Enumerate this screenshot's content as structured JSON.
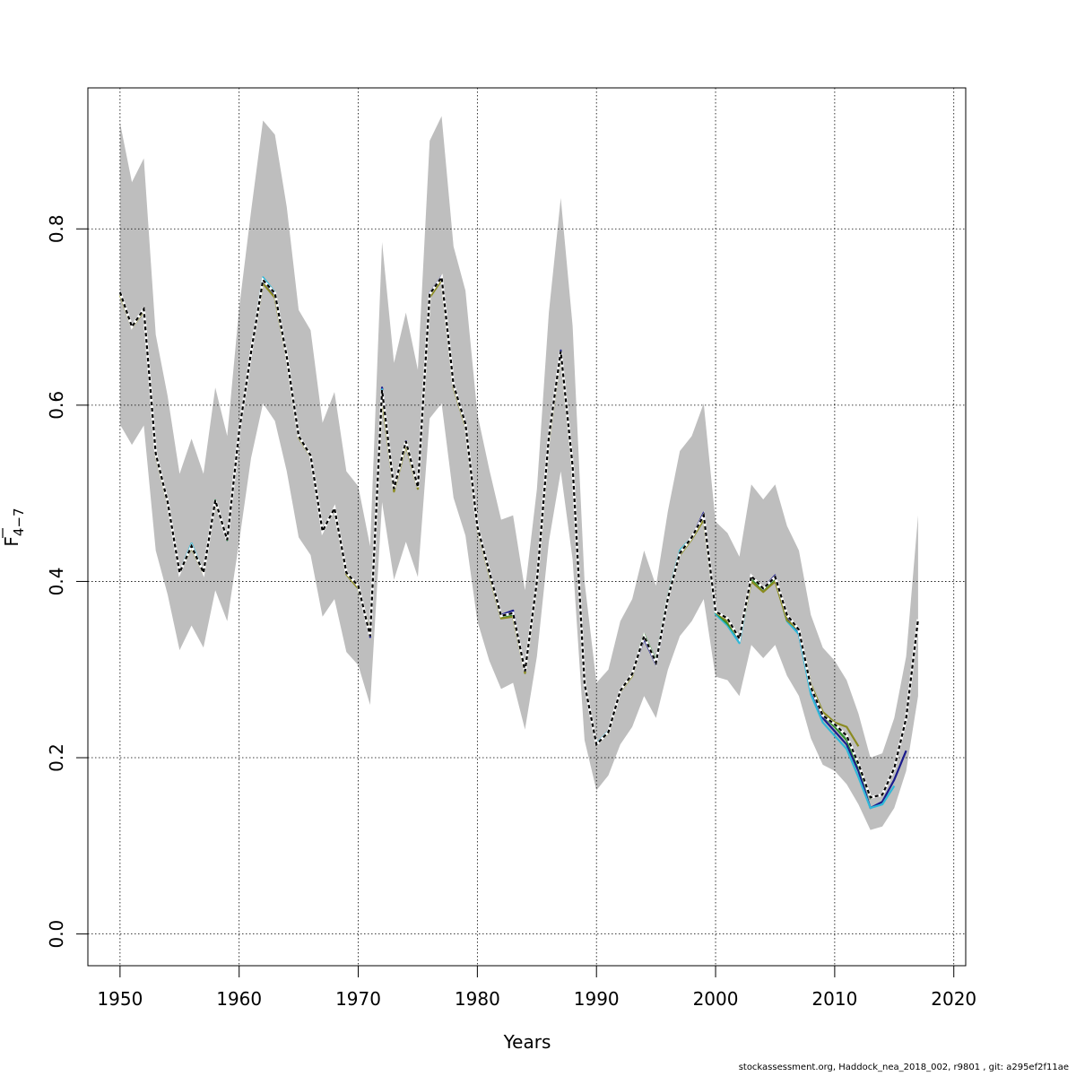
{
  "chart_data": {
    "type": "line",
    "title": "",
    "xlabel": "Years",
    "ylabel": "F̄ 4−7",
    "ylabel_main": "F",
    "ylabel_sub": "4−7",
    "xlim": [
      1947.3,
      2021
    ],
    "ylim": [
      -0.036,
      0.96
    ],
    "xticks": [
      1950,
      1960,
      1970,
      1980,
      1990,
      2000,
      2010,
      2020
    ],
    "yticks": [
      0.0,
      0.2,
      0.4,
      0.6,
      0.8
    ],
    "ytick_labels": [
      "0.0",
      "0.2",
      "0.4",
      "0.6",
      "0.8"
    ],
    "xtick_labels": [
      "1950",
      "1960",
      "1970",
      "1980",
      "1990",
      "2000",
      "2010",
      "2020"
    ],
    "grid": true,
    "confidence_band": {
      "color": "#bebebe",
      "x": [
        1950,
        1951,
        1952,
        1953,
        1954,
        1955,
        1956,
        1957,
        1958,
        1959,
        1960,
        1961,
        1962,
        1963,
        1964,
        1965,
        1966,
        1967,
        1968,
        1969,
        1970,
        1971,
        1972,
        1973,
        1974,
        1975,
        1976,
        1977,
        1978,
        1979,
        1980,
        1981,
        1982,
        1983,
        1984,
        1985,
        1986,
        1987,
        1988,
        1989,
        1990,
        1991,
        1992,
        1993,
        1994,
        1995,
        1996,
        1997,
        1998,
        1999,
        2000,
        2001,
        2002,
        2003,
        2004,
        2005,
        2006,
        2007,
        2008,
        2009,
        2010,
        2011,
        2012,
        2013,
        2014,
        2015,
        2016,
        2017
      ],
      "upper": [
        0.92,
        0.853,
        0.88,
        0.68,
        0.61,
        0.522,
        0.562,
        0.522,
        0.62,
        0.565,
        0.71,
        0.82,
        0.923,
        0.907,
        0.825,
        0.708,
        0.685,
        0.58,
        0.615,
        0.525,
        0.508,
        0.44,
        0.785,
        0.648,
        0.705,
        0.64,
        0.9,
        0.928,
        0.78,
        0.73,
        0.59,
        0.527,
        0.47,
        0.475,
        0.39,
        0.505,
        0.705,
        0.835,
        0.69,
        0.4,
        0.285,
        0.3,
        0.355,
        0.38,
        0.435,
        0.395,
        0.48,
        0.548,
        0.565,
        0.602,
        0.468,
        0.455,
        0.428,
        0.51,
        0.493,
        0.51,
        0.463,
        0.435,
        0.362,
        0.325,
        0.31,
        0.288,
        0.25,
        0.2,
        0.205,
        0.245,
        0.315,
        0.475
      ],
      "lower": [
        0.578,
        0.555,
        0.577,
        0.435,
        0.385,
        0.322,
        0.35,
        0.325,
        0.39,
        0.355,
        0.445,
        0.54,
        0.602,
        0.582,
        0.525,
        0.45,
        0.43,
        0.36,
        0.38,
        0.32,
        0.305,
        0.26,
        0.49,
        0.402,
        0.445,
        0.405,
        0.585,
        0.602,
        0.495,
        0.452,
        0.355,
        0.31,
        0.278,
        0.285,
        0.232,
        0.315,
        0.445,
        0.525,
        0.425,
        0.22,
        0.163,
        0.18,
        0.215,
        0.235,
        0.27,
        0.245,
        0.3,
        0.338,
        0.355,
        0.38,
        0.292,
        0.288,
        0.27,
        0.328,
        0.313,
        0.328,
        0.293,
        0.27,
        0.222,
        0.192,
        0.185,
        0.17,
        0.147,
        0.118,
        0.122,
        0.143,
        0.185,
        0.27
      ]
    },
    "series": [
      {
        "color": "#1a1a8c",
        "x": [
          1950,
          1951,
          1952,
          1953,
          1954,
          1955,
          1956,
          1957,
          1958,
          1959,
          1960,
          1961,
          1962,
          1963,
          1964,
          1965,
          1966,
          1967,
          1968,
          1969,
          1970,
          1971,
          1972,
          1973,
          1974,
          1975,
          1976,
          1977,
          1978,
          1979,
          1980,
          1981,
          1982,
          1983,
          1984,
          1985,
          1986,
          1987,
          1988,
          1989,
          1990,
          1991,
          1992,
          1993,
          1994,
          1995,
          1996,
          1997,
          1998,
          1999,
          2000,
          2001,
          2002,
          2003,
          2004,
          2005,
          2006,
          2007,
          2008,
          2009,
          2010,
          2011,
          2012,
          2013,
          2014,
          2015,
          2016
        ],
        "y": [
          0.728,
          0.689,
          0.709,
          0.545,
          0.49,
          0.41,
          0.441,
          0.41,
          0.492,
          0.447,
          0.57,
          0.66,
          0.74,
          0.725,
          0.655,
          0.565,
          0.543,
          0.457,
          0.483,
          0.41,
          0.395,
          0.337,
          0.62,
          0.505,
          0.559,
          0.507,
          0.727,
          0.746,
          0.624,
          0.58,
          0.462,
          0.412,
          0.362,
          0.367,
          0.298,
          0.4,
          0.565,
          0.662,
          0.532,
          0.283,
          0.215,
          0.229,
          0.275,
          0.295,
          0.335,
          0.306,
          0.38,
          0.43,
          0.45,
          0.478,
          0.365,
          0.355,
          0.332,
          0.406,
          0.392,
          0.407,
          0.358,
          0.34,
          0.275,
          0.245,
          0.23,
          0.215,
          0.185,
          0.143,
          0.15,
          0.175,
          0.208
        ]
      },
      {
        "color": "#2fb8d8",
        "x": [
          1950,
          1951,
          1952,
          1953,
          1954,
          1955,
          1956,
          1957,
          1958,
          1959,
          1960,
          1961,
          1962,
          1963,
          1964,
          1965,
          1966,
          1967,
          1968,
          1969,
          1970,
          1971,
          1972,
          1973,
          1974,
          1975,
          1976,
          1977,
          1978,
          1979,
          1980,
          1981,
          1982,
          1983,
          1984,
          1985,
          1986,
          1987,
          1988,
          1989,
          1990,
          1991,
          1992,
          1993,
          1994,
          1995,
          1996,
          1997,
          1998,
          1999,
          2000,
          2001,
          2002,
          2003,
          2004,
          2005,
          2006,
          2007,
          2008,
          2009,
          2010,
          2011,
          2012,
          2013,
          2014,
          2015
        ],
        "y": [
          0.728,
          0.689,
          0.709,
          0.545,
          0.49,
          0.41,
          0.443,
          0.41,
          0.492,
          0.447,
          0.57,
          0.66,
          0.745,
          0.728,
          0.656,
          0.565,
          0.543,
          0.457,
          0.483,
          0.41,
          0.393,
          0.34,
          0.618,
          0.505,
          0.558,
          0.507,
          0.725,
          0.745,
          0.622,
          0.578,
          0.462,
          0.41,
          0.36,
          0.362,
          0.298,
          0.4,
          0.563,
          0.66,
          0.53,
          0.283,
          0.216,
          0.23,
          0.276,
          0.295,
          0.338,
          0.31,
          0.383,
          0.435,
          0.45,
          0.475,
          0.363,
          0.35,
          0.33,
          0.404,
          0.39,
          0.403,
          0.355,
          0.34,
          0.272,
          0.24,
          0.225,
          0.21,
          0.178,
          0.143,
          0.147,
          0.168
        ]
      },
      {
        "color": "#2f8f2f",
        "x": [
          1950,
          1951,
          1952,
          1953,
          1954,
          1955,
          1956,
          1957,
          1958,
          1959,
          1960,
          1961,
          1962,
          1963,
          1964,
          1965,
          1966,
          1967,
          1968,
          1969,
          1970,
          1971,
          1972,
          1973,
          1974,
          1975,
          1976,
          1977,
          1978,
          1979,
          1980,
          1981,
          1982,
          1983,
          1984,
          1985,
          1986,
          1987,
          1988,
          1989,
          1990,
          1991,
          1992,
          1993,
          1994,
          1995,
          1996,
          1997,
          1998,
          1999,
          2000,
          2001,
          2002,
          2003,
          2004,
          2005,
          2006,
          2007,
          2008,
          2009,
          2010,
          2011,
          2012,
          2013
        ],
        "y": [
          0.727,
          0.689,
          0.709,
          0.545,
          0.49,
          0.41,
          0.44,
          0.41,
          0.492,
          0.447,
          0.57,
          0.66,
          0.742,
          0.727,
          0.656,
          0.565,
          0.543,
          0.457,
          0.483,
          0.41,
          0.394,
          0.34,
          0.614,
          0.505,
          0.558,
          0.507,
          0.725,
          0.744,
          0.622,
          0.578,
          0.462,
          0.41,
          0.36,
          0.362,
          0.298,
          0.4,
          0.563,
          0.66,
          0.53,
          0.284,
          0.215,
          0.229,
          0.276,
          0.295,
          0.34,
          0.31,
          0.383,
          0.433,
          0.45,
          0.472,
          0.365,
          0.352,
          0.335,
          0.403,
          0.39,
          0.402,
          0.356,
          0.345,
          0.28,
          0.248,
          0.235,
          0.22,
          0.19,
          0.153
        ]
      },
      {
        "color": "#8b8b20",
        "x": [
          1950,
          1951,
          1952,
          1953,
          1954,
          1955,
          1956,
          1957,
          1958,
          1959,
          1960,
          1961,
          1962,
          1963,
          1964,
          1965,
          1966,
          1967,
          1968,
          1969,
          1970,
          1971,
          1972,
          1973,
          1974,
          1975,
          1976,
          1977,
          1978,
          1979,
          1980,
          1981,
          1982,
          1983,
          1984,
          1985,
          1986,
          1987,
          1988,
          1989,
          1990,
          1991,
          1992,
          1993,
          1994,
          1995,
          1996,
          1997,
          1998,
          1999,
          2000,
          2001,
          2002,
          2003,
          2004,
          2005,
          2006,
          2007,
          2008,
          2009,
          2010,
          2011,
          2012
        ],
        "y": [
          0.725,
          0.688,
          0.707,
          0.543,
          0.488,
          0.41,
          0.438,
          0.409,
          0.49,
          0.448,
          0.57,
          0.66,
          0.738,
          0.722,
          0.653,
          0.563,
          0.542,
          0.457,
          0.482,
          0.408,
          0.392,
          0.342,
          0.608,
          0.502,
          0.555,
          0.505,
          0.722,
          0.742,
          0.62,
          0.576,
          0.46,
          0.408,
          0.358,
          0.36,
          0.296,
          0.398,
          0.56,
          0.658,
          0.528,
          0.285,
          0.215,
          0.228,
          0.275,
          0.293,
          0.338,
          0.308,
          0.38,
          0.43,
          0.448,
          0.47,
          0.365,
          0.355,
          0.335,
          0.4,
          0.388,
          0.4,
          0.356,
          0.345,
          0.283,
          0.252,
          0.24,
          0.235,
          0.213
        ]
      },
      {
        "color": "#000000",
        "dashed": true,
        "x": [
          1950,
          1951,
          1952,
          1953,
          1954,
          1955,
          1956,
          1957,
          1958,
          1959,
          1960,
          1961,
          1962,
          1963,
          1964,
          1965,
          1966,
          1967,
          1968,
          1969,
          1970,
          1971,
          1972,
          1973,
          1974,
          1975,
          1976,
          1977,
          1978,
          1979,
          1980,
          1981,
          1982,
          1983,
          1984,
          1985,
          1986,
          1987,
          1988,
          1989,
          1990,
          1991,
          1992,
          1993,
          1994,
          1995,
          1996,
          1997,
          1998,
          1999,
          2000,
          2001,
          2002,
          2003,
          2004,
          2005,
          2006,
          2007,
          2008,
          2009,
          2010,
          2011,
          2012,
          2013,
          2014,
          2015,
          2016,
          2017
        ],
        "y": [
          0.728,
          0.689,
          0.709,
          0.545,
          0.49,
          0.41,
          0.44,
          0.41,
          0.492,
          0.447,
          0.57,
          0.66,
          0.742,
          0.727,
          0.655,
          0.565,
          0.543,
          0.457,
          0.483,
          0.41,
          0.395,
          0.338,
          0.617,
          0.505,
          0.559,
          0.507,
          0.726,
          0.745,
          0.623,
          0.579,
          0.462,
          0.411,
          0.361,
          0.364,
          0.298,
          0.4,
          0.564,
          0.661,
          0.531,
          0.284,
          0.215,
          0.229,
          0.276,
          0.295,
          0.338,
          0.308,
          0.381,
          0.432,
          0.45,
          0.475,
          0.366,
          0.358,
          0.335,
          0.406,
          0.392,
          0.405,
          0.362,
          0.345,
          0.28,
          0.248,
          0.238,
          0.225,
          0.193,
          0.155,
          0.158,
          0.188,
          0.245,
          0.357
        ]
      }
    ]
  },
  "footer": "stockassessment.org, Haddock_nea_2018_002, r9801 , git: a295ef2f11ae"
}
